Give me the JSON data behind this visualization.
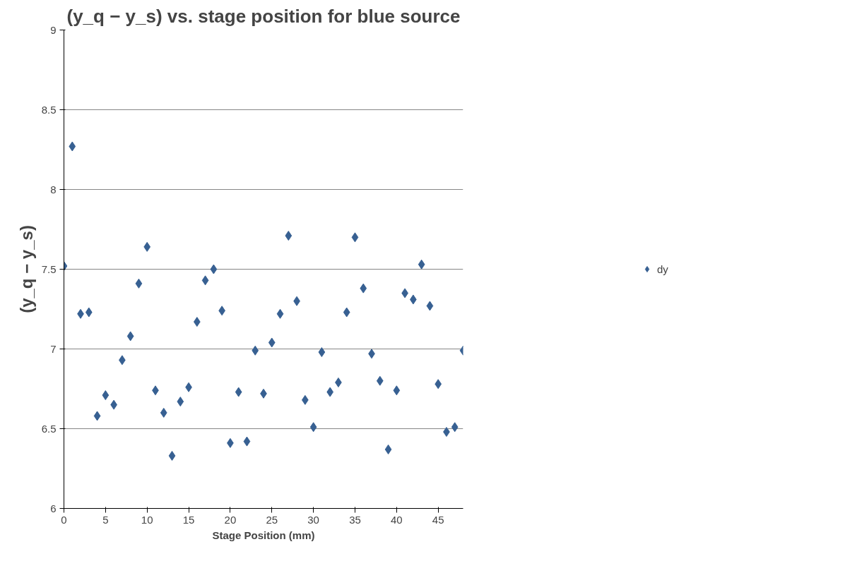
{
  "chart_data": {
    "type": "scatter",
    "title": "(y_q − y_s) vs. stage position for blue source",
    "xlabel": "Stage Position (mm)",
    "ylabel": "(y_q − y_s)",
    "x": [
      0,
      1,
      2,
      3,
      4,
      5,
      6,
      7,
      8,
      9,
      10,
      11,
      12,
      13,
      14,
      15,
      16,
      17,
      18,
      19,
      20,
      21,
      22,
      23,
      24,
      25,
      26,
      27,
      28,
      29,
      30,
      31,
      32,
      33,
      34,
      35,
      36,
      37,
      38,
      39,
      40,
      41,
      42,
      43,
      44,
      45,
      46,
      47,
      48
    ],
    "series": [
      {
        "name": "dy",
        "color": "#376092",
        "values": [
          7.52,
          8.27,
          7.22,
          7.23,
          6.58,
          6.71,
          6.65,
          6.93,
          7.08,
          7.41,
          7.64,
          6.74,
          6.6,
          6.33,
          6.67,
          6.76,
          7.17,
          7.43,
          7.5,
          7.24,
          6.41,
          6.73,
          6.42,
          6.99,
          6.72,
          7.04,
          7.22,
          7.71,
          7.3,
          6.68,
          6.51,
          6.98,
          6.73,
          6.79,
          7.23,
          7.7,
          7.38,
          6.97,
          6.8,
          6.37,
          6.74,
          7.35,
          7.31,
          7.53,
          7.27,
          6.78,
          6.48,
          6.51,
          6.99
        ]
      }
    ],
    "xlim": [
      0,
      48
    ],
    "xticks": [
      0,
      5,
      10,
      15,
      20,
      25,
      30,
      35,
      40,
      45
    ],
    "ylim": [
      6,
      9
    ],
    "yticks": [
      6,
      6.5,
      7,
      7.5,
      8,
      8.5,
      9
    ],
    "grid": "y",
    "legend": "right",
    "marker": "diamond"
  }
}
